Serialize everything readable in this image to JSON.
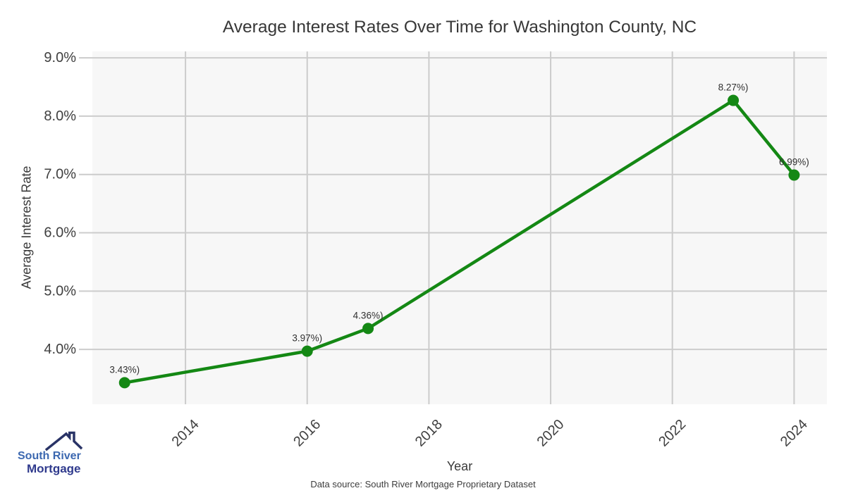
{
  "chart_data": {
    "type": "line",
    "title": "Average Interest Rates Over Time for Washington County, NC",
    "xlabel": "Year",
    "ylabel": "Average Interest Rate",
    "x": [
      2013,
      2016,
      2017,
      2023,
      2024
    ],
    "values": [
      3.43,
      3.97,
      4.36,
      8.27,
      6.99
    ],
    "point_labels": [
      "3.43%)",
      "3.97%)",
      "4.36%)",
      "8.27%)",
      "6.99%)"
    ],
    "xlim": [
      2012.47,
      2024.54
    ],
    "ylim": [
      3.06,
      9.11
    ],
    "xticks": {
      "values": [
        2014,
        2016,
        2018,
        2020,
        2022,
        2024
      ],
      "labels": [
        "2014",
        "2016",
        "2018",
        "2020",
        "2022",
        "2024"
      ],
      "rotation": 45
    },
    "yticks": {
      "values": [
        4,
        5,
        6,
        7,
        8,
        9
      ],
      "labels": [
        "4.0%",
        "5.0%",
        "6.0%",
        "7.0%",
        "8.0%",
        "9.0%"
      ]
    },
    "grid": true,
    "legend": "none",
    "line_color": "#148814",
    "marker": "circle",
    "plot_bg": "#f7f7f7",
    "grid_color": "#cccccc",
    "tick_text_color": "#404040",
    "label_text_color": "#303030"
  },
  "footer": {
    "source": "Data source: South River Mortgage Proprietary Dataset"
  },
  "logo": {
    "line1": "South River",
    "line2": "Mortgage",
    "icon": "house-roof-icon",
    "color_line1": "#3c68b0",
    "color_line2": "#2f3a8d",
    "color_roof": "#293366"
  }
}
